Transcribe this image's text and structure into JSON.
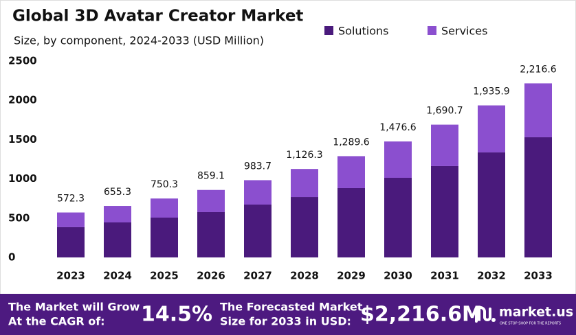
{
  "chart_data": {
    "type": "stacked_bar",
    "title": "Global 3D Avatar Creator Market",
    "subtitle": "Size, by component, 2024-2033 (USD Million)",
    "categories": [
      "2023",
      "2024",
      "2025",
      "2026",
      "2027",
      "2028",
      "2029",
      "2030",
      "2031",
      "2032",
      "2033"
    ],
    "series": [
      {
        "name": "Solutions",
        "color": "#4a1a7c",
        "values": [
          385,
          446,
          507,
          577,
          673,
          769,
          883,
          1014,
          1163,
          1337,
          1530
        ]
      },
      {
        "name": "Services",
        "color": "#8b4fcf",
        "values": [
          187.3,
          209.3,
          243.3,
          282.1,
          310.7,
          357.3,
          406.6,
          462.6,
          527.7,
          598.9,
          686.6
        ]
      }
    ],
    "totals": [
      572.3,
      655.3,
      750.3,
      859.1,
      983.7,
      1126.3,
      1289.6,
      1476.6,
      1690.7,
      1935.9,
      2216.6
    ],
    "total_labels": [
      "572.3",
      "655.3",
      "750.3",
      "859.1",
      "983.7",
      "1,126.3",
      "1,289.6",
      "1,476.6",
      "1,690.7",
      "1,935.9",
      "2,216.6"
    ],
    "ylim": [
      0,
      2500
    ],
    "yticks": [
      0,
      500,
      1000,
      1500,
      2000,
      2500
    ],
    "grid": false,
    "legend": "top-right"
  },
  "footer": {
    "cagr_text": [
      "The Market will Grow",
      "At the CAGR of:"
    ],
    "cagr_value": "14.5%",
    "forecast_text": [
      "The Forecasted Market",
      "Size for 2033 in USD:"
    ],
    "forecast_value": "$2,216.6M",
    "brand": "market.us",
    "brand_tagline": "ONE STOP SHOP FOR THE REPORTS"
  }
}
